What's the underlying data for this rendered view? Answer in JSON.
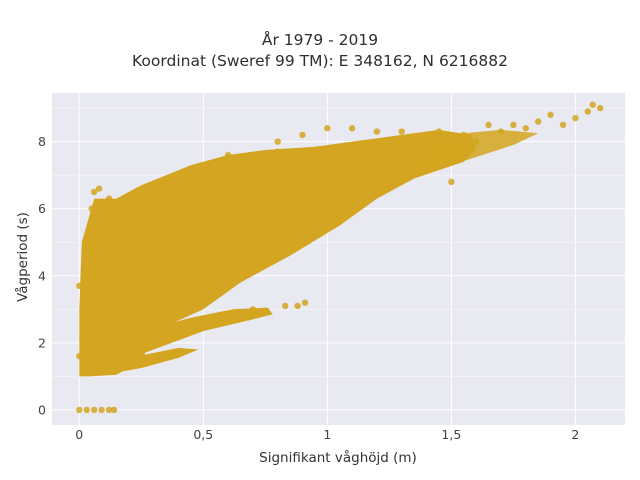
{
  "chart_data": {
    "type": "scatter",
    "title_lines": [
      "År 1979 - 2019",
      "Koordinat (Sweref 99 TM): E 348162, N 6216882"
    ],
    "xlabel": "Signifikant våghöjd (m)",
    "ylabel": "Vågperiod (s)",
    "xlim": [
      -0.11,
      2.2
    ],
    "ylim": [
      -0.45,
      9.45
    ],
    "x_ticks": [
      0,
      0.5,
      1,
      1.5,
      2
    ],
    "x_tick_labels": [
      "0",
      "0,5",
      "1",
      "1,5",
      "2"
    ],
    "y_ticks": [
      0,
      2,
      4,
      6,
      8
    ],
    "y_tick_labels": [
      "0",
      "2",
      "4",
      "6",
      "8"
    ],
    "grid": true,
    "plot_background": "#e9e9f1",
    "marker_color": "#d4a520",
    "points": [
      [
        0.0,
        0.0
      ],
      [
        0.03,
        0.0
      ],
      [
        0.06,
        0.0
      ],
      [
        0.09,
        0.0
      ],
      [
        0.12,
        0.0
      ],
      [
        0.14,
        0.0
      ],
      [
        0.0,
        1.6
      ],
      [
        0.0,
        3.7
      ],
      [
        0.02,
        1.2
      ],
      [
        0.05,
        1.1
      ],
      [
        0.1,
        1.2
      ],
      [
        0.15,
        1.3
      ],
      [
        0.05,
        6.0
      ],
      [
        0.06,
        6.5
      ],
      [
        0.08,
        6.6
      ],
      [
        0.12,
        6.3
      ],
      [
        0.25,
        6.3
      ],
      [
        0.4,
        7.0
      ],
      [
        0.6,
        7.6
      ],
      [
        0.8,
        7.7
      ],
      [
        1.0,
        7.5
      ],
      [
        0.26,
        1.9
      ],
      [
        0.45,
        2.4
      ],
      [
        0.6,
        2.8
      ],
      [
        0.7,
        3.0
      ],
      [
        0.75,
        2.9
      ],
      [
        0.83,
        3.1
      ],
      [
        0.88,
        3.1
      ],
      [
        0.91,
        3.2
      ],
      [
        0.8,
        8.0
      ],
      [
        0.9,
        8.2
      ],
      [
        1.0,
        8.4
      ],
      [
        1.1,
        8.4
      ],
      [
        1.2,
        8.3
      ],
      [
        1.3,
        8.3
      ],
      [
        1.35,
        7.6
      ],
      [
        1.45,
        8.3
      ],
      [
        1.5,
        6.8
      ],
      [
        1.55,
        8.2
      ],
      [
        1.6,
        8.0
      ],
      [
        1.65,
        8.5
      ],
      [
        1.7,
        8.3
      ],
      [
        1.75,
        8.5
      ],
      [
        1.8,
        8.4
      ],
      [
        1.85,
        8.6
      ],
      [
        1.9,
        8.8
      ],
      [
        1.95,
        8.5
      ],
      [
        2.0,
        8.7
      ],
      [
        2.05,
        8.9
      ],
      [
        2.07,
        9.1
      ],
      [
        2.1,
        9.0
      ]
    ]
  }
}
